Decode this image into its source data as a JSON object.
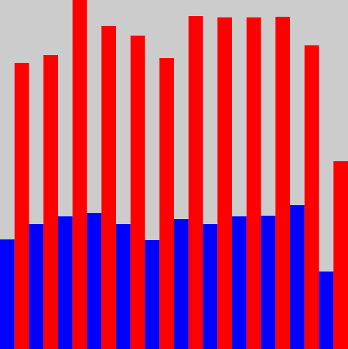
{
  "chart_data": {
    "type": "bar",
    "background": "#cccccc",
    "series": [
      {
        "color": "#0000ff",
        "values": [
          157,
          179,
          190,
          195,
          179,
          156,
          186,
          179,
          190,
          191,
          206,
          111
        ]
      },
      {
        "color": "#ff0000",
        "values": [
          410,
          421,
          500,
          463,
          449,
          417,
          477,
          475,
          475,
          476,
          435,
          269
        ]
      }
    ],
    "ylim": [
      0,
      500
    ]
  }
}
